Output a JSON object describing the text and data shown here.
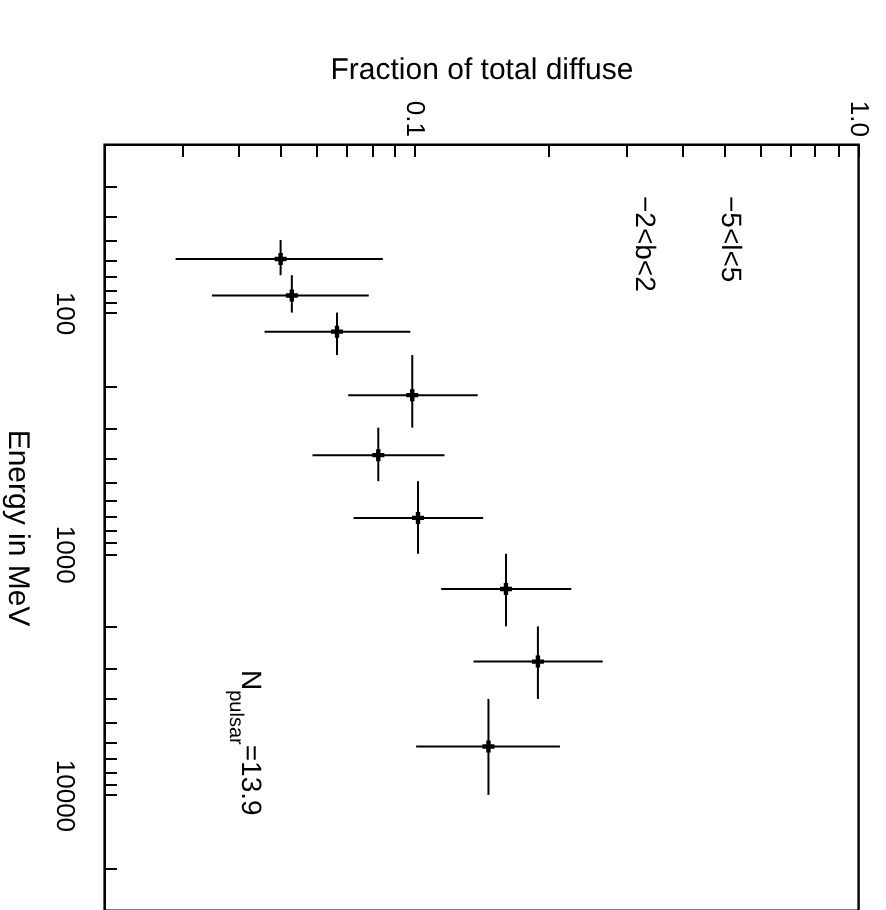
{
  "chart_data": {
    "type": "scatter",
    "xlabel": "Fraction of total diffuse",
    "ylabel": "Energy in MeV",
    "log": "xy",
    "marker": "cross",
    "xlim": [
      0.02,
      1.0
    ],
    "ylim": [
      30000,
      20
    ],
    "xticks": [
      {
        "value": 0.02,
        "label": null
      },
      {
        "value": 0.03,
        "label": null
      },
      {
        "value": 0.04,
        "label": null
      },
      {
        "value": 0.05,
        "label": null
      },
      {
        "value": 0.06,
        "label": null
      },
      {
        "value": 0.07,
        "label": null
      },
      {
        "value": 0.08,
        "label": null
      },
      {
        "value": 0.09,
        "label": null
      },
      0.1,
      {
        "value": 0.2,
        "label": null
      },
      {
        "value": 0.3,
        "label": null
      },
      {
        "value": 0.4,
        "label": null
      },
      {
        "value": 0.5,
        "label": null
      },
      {
        "value": 0.6,
        "label": null
      },
      {
        "value": 0.7,
        "label": null
      },
      {
        "value": 0.8,
        "label": null
      },
      {
        "value": 0.9,
        "label": null
      },
      {
        "value": 1.0,
        "label": "1.0"
      }
    ],
    "yticks": [
      {
        "value": 20,
        "label": null
      },
      {
        "value": 30,
        "label": null
      },
      {
        "value": 40,
        "label": null
      },
      {
        "value": 50,
        "label": null
      },
      {
        "value": 60,
        "label": null
      },
      {
        "value": 70,
        "label": null
      },
      {
        "value": 80,
        "label": null
      },
      {
        "value": 90,
        "label": null
      },
      100,
      {
        "value": 200,
        "label": null
      },
      {
        "value": 300,
        "label": null
      },
      {
        "value": 400,
        "label": null
      },
      {
        "value": 500,
        "label": null
      },
      {
        "value": 600,
        "label": null
      },
      {
        "value": 700,
        "label": null
      },
      {
        "value": 800,
        "label": null
      },
      {
        "value": 900,
        "label": null
      },
      1000,
      {
        "value": 2000,
        "label": null
      },
      {
        "value": 3000,
        "label": null
      },
      {
        "value": 4000,
        "label": null
      },
      {
        "value": 5000,
        "label": null
      },
      {
        "value": 6000,
        "label": null
      },
      {
        "value": 7000,
        "label": null
      },
      {
        "value": 8000,
        "label": null
      },
      {
        "value": 9000,
        "label": null
      },
      10000,
      {
        "value": 20000,
        "label": null
      },
      {
        "value": 30000,
        "label": null
      }
    ],
    "x": [
      0.05,
      0.053,
      0.067,
      0.099,
      0.083,
      0.102,
      0.161,
      0.19,
      0.147
    ],
    "series": [
      {
        "color": "#000000",
        "values": [
          60,
          85,
          120,
          220,
          390,
          710,
          1400,
          2800,
          6300
        ],
        "errors": [
          [
            50,
            70
          ],
          [
            70,
            100
          ],
          [
            100,
            150
          ],
          [
            150,
            300
          ],
          [
            300,
            500
          ],
          [
            500,
            1000
          ],
          [
            1000,
            2000
          ],
          [
            2000,
            4000
          ],
          [
            4000,
            10000
          ]
        ],
        "xerrors": [
          [
            0.029,
            0.085
          ],
          [
            0.035,
            0.079
          ],
          [
            0.046,
            0.098
          ],
          [
            0.071,
            0.139
          ],
          [
            0.059,
            0.117
          ],
          [
            0.073,
            0.143
          ],
          [
            0.115,
            0.226
          ],
          [
            0.136,
            0.266
          ],
          [
            0.101,
            0.213
          ]
        ]
      }
    ],
    "annotations": [
      "−5<l<5",
      "−2<b<2",
      "N$_{pulsar}$=13.9"
    ]
  }
}
